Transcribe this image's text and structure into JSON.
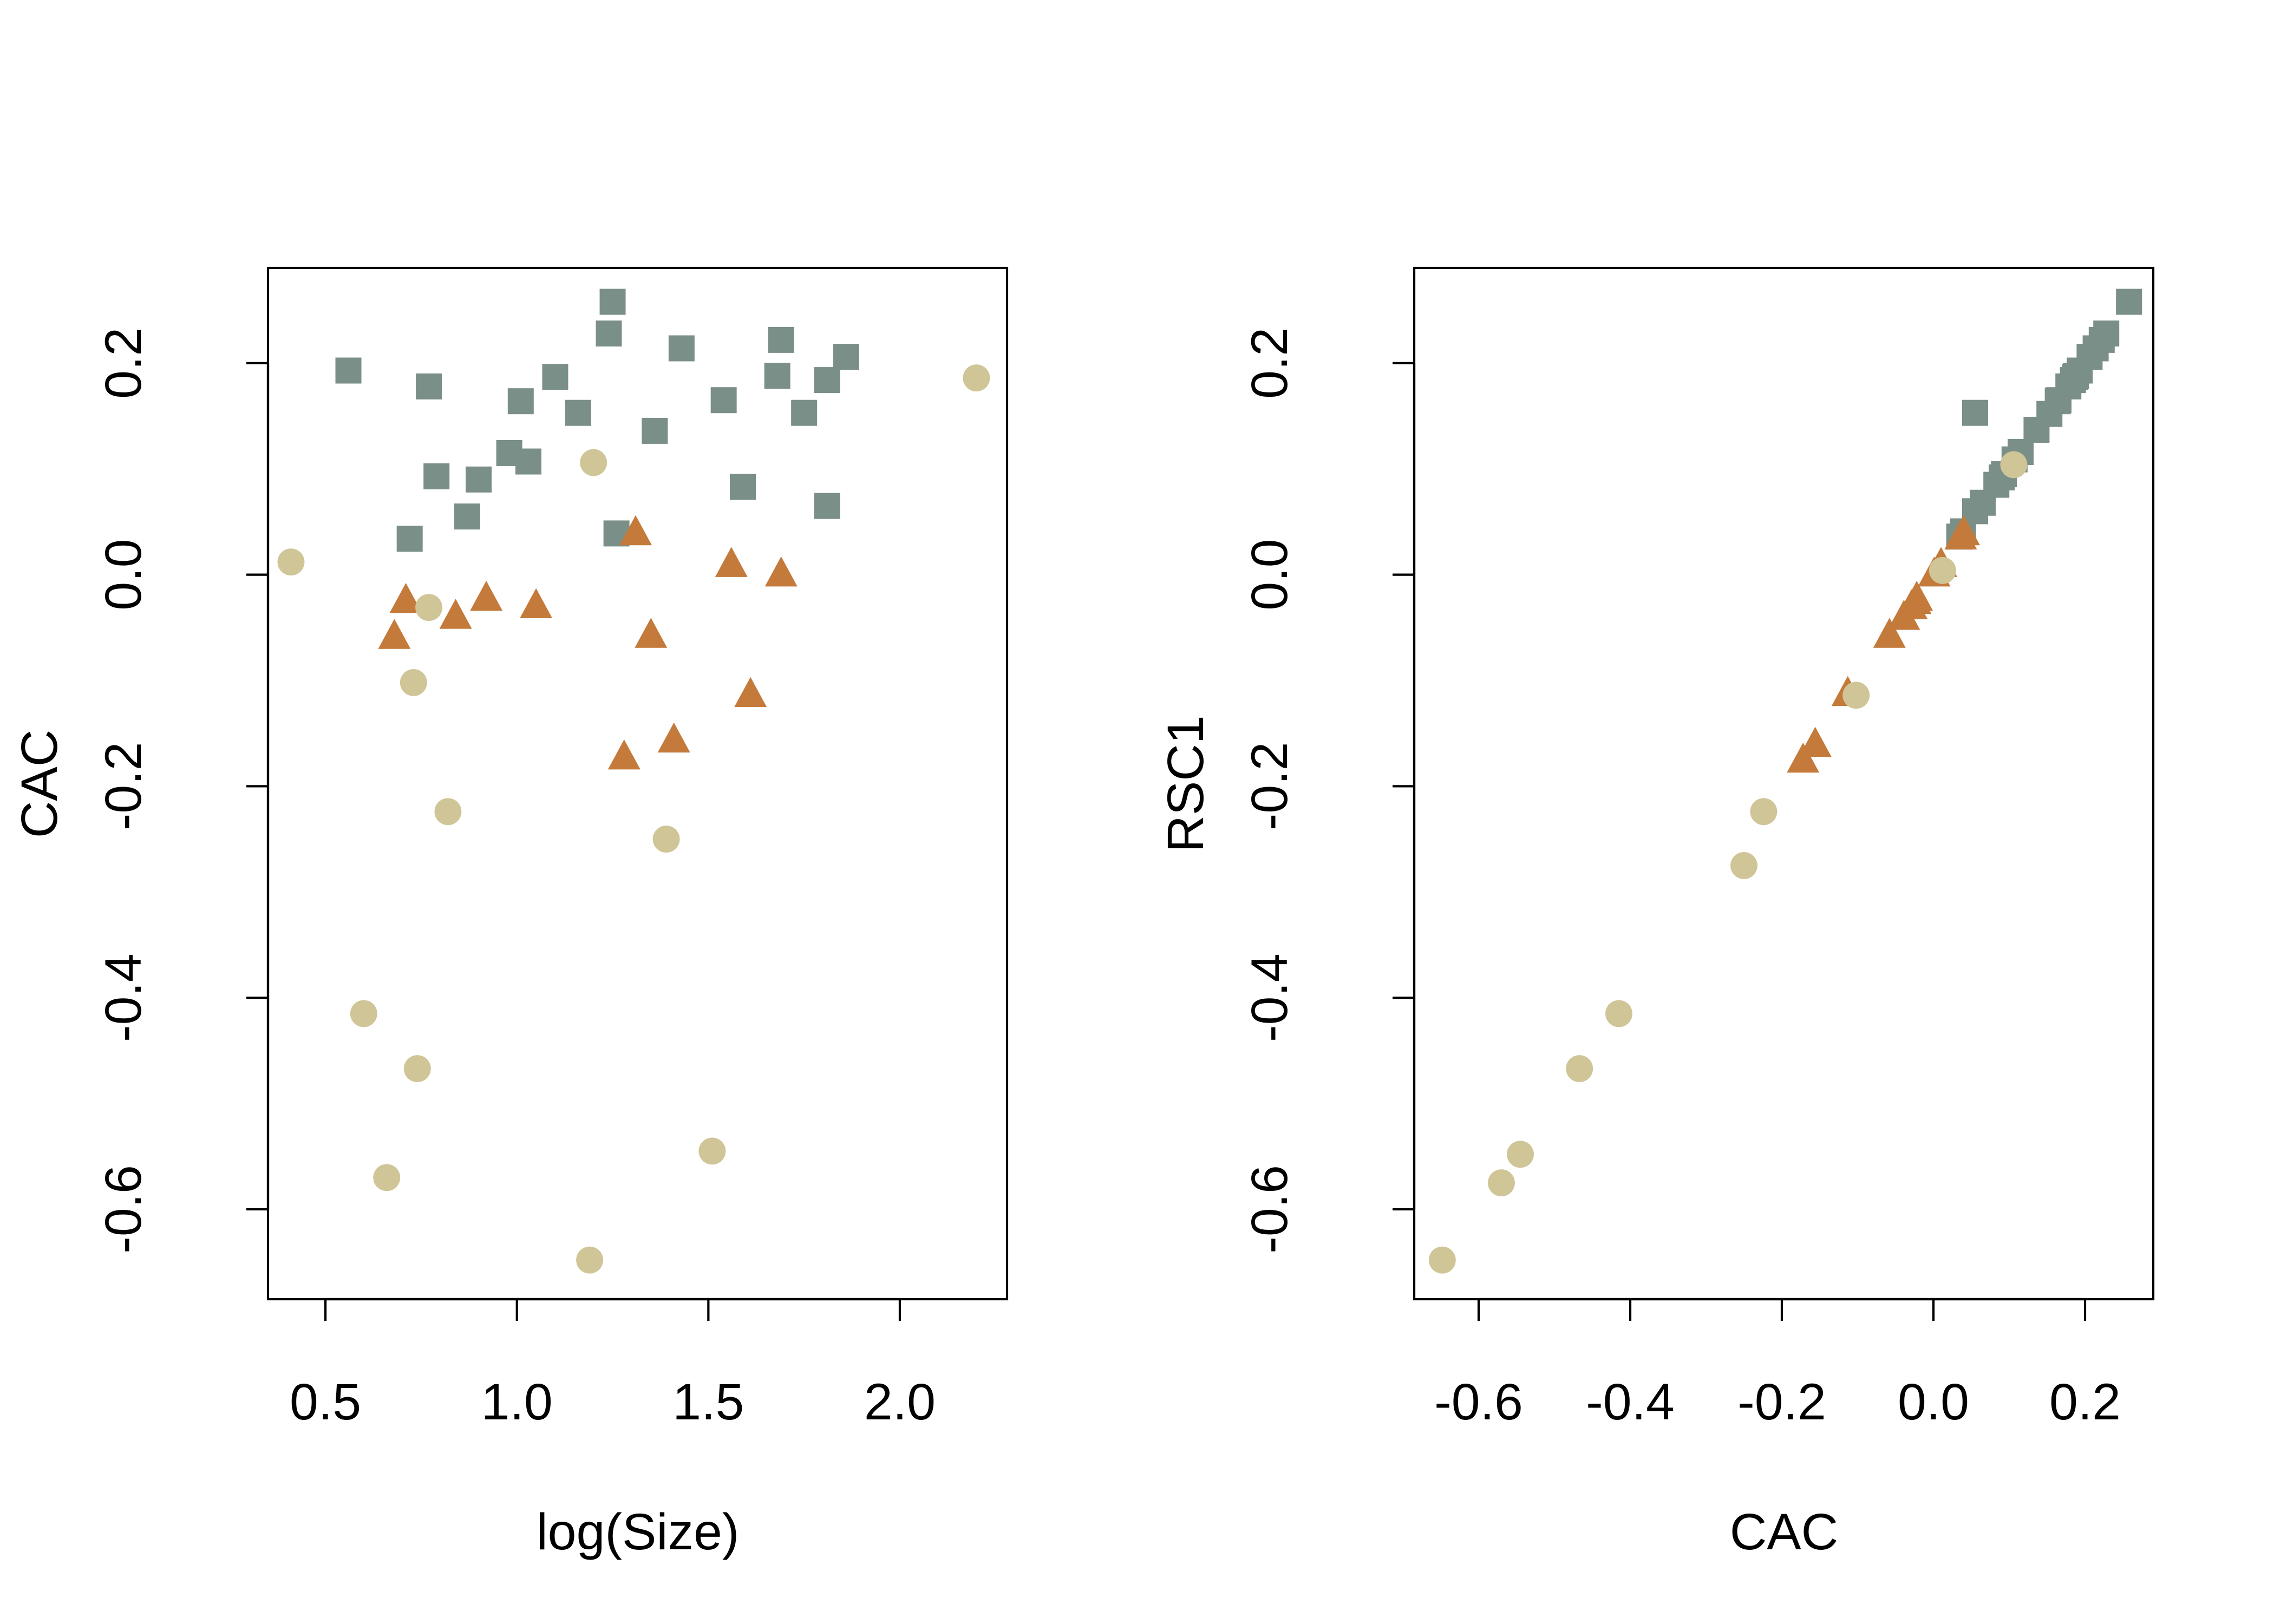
{
  "colors": {
    "group_square": "#7a8f87",
    "group_triangle": "#c47a3a",
    "group_circle": "#cfc597",
    "axis": "#000000",
    "background": "#ffffff"
  },
  "chart_data": [
    {
      "type": "scatter",
      "title": "",
      "xlabel": "log(Size)",
      "ylabel": "CAC",
      "xlim": [
        0.35,
        2.28
      ],
      "ylim": [
        -0.685,
        0.29
      ],
      "x_ticks": [
        0.5,
        1.0,
        1.5,
        2.0
      ],
      "x_tick_labels": [
        "0.5",
        "1.0",
        "1.5",
        "2.0"
      ],
      "y_ticks": [
        -0.6,
        -0.4,
        -0.2,
        0.0,
        0.2
      ],
      "y_tick_labels": [
        "-0.6",
        "-0.4",
        "-0.2",
        "0.0",
        "0.2"
      ],
      "grid": false,
      "legend": "none",
      "series": [
        {
          "marker": "square",
          "color": "#7a8f87",
          "points": [
            [
              0.56,
              0.193
            ],
            [
              0.77,
              0.178
            ],
            [
              0.79,
              0.093
            ],
            [
              0.72,
              0.034
            ],
            [
              0.87,
              0.055
            ],
            [
              0.9,
              0.09
            ],
            [
              0.98,
              0.115
            ],
            [
              1.01,
              0.164
            ],
            [
              1.03,
              0.107
            ],
            [
              1.1,
              0.187
            ],
            [
              1.16,
              0.153
            ],
            [
              1.24,
              0.228
            ],
            [
              1.25,
              0.258
            ],
            [
              1.26,
              0.039
            ],
            [
              1.36,
              0.136
            ],
            [
              1.43,
              0.214
            ],
            [
              1.54,
              0.165
            ],
            [
              1.59,
              0.083
            ],
            [
              1.68,
              0.188
            ],
            [
              1.69,
              0.222
            ],
            [
              1.75,
              0.153
            ],
            [
              1.81,
              0.184
            ],
            [
              1.81,
              0.065
            ],
            [
              1.86,
              0.206
            ]
          ]
        },
        {
          "marker": "triangle",
          "color": "#c47a3a",
          "points": [
            [
              0.68,
              -0.058
            ],
            [
              0.71,
              -0.024
            ],
            [
              0.84,
              -0.039
            ],
            [
              0.92,
              -0.022
            ],
            [
              1.05,
              -0.029
            ],
            [
              1.28,
              -0.172
            ],
            [
              1.31,
              0.04
            ],
            [
              1.35,
              -0.057
            ],
            [
              1.41,
              -0.156
            ],
            [
              1.56,
              0.01
            ],
            [
              1.61,
              -0.113
            ],
            [
              1.69,
              0.001
            ]
          ]
        },
        {
          "marker": "circle",
          "color": "#cfc597",
          "points": [
            [
              0.41,
              0.012
            ],
            [
              0.6,
              -0.415
            ],
            [
              0.66,
              -0.57
            ],
            [
              0.73,
              -0.102
            ],
            [
              0.74,
              -0.467
            ],
            [
              0.77,
              -0.031
            ],
            [
              0.82,
              -0.224
            ],
            [
              1.19,
              -0.648
            ],
            [
              1.2,
              0.106
            ],
            [
              1.39,
              -0.25
            ],
            [
              1.51,
              -0.545
            ],
            [
              2.2,
              0.186
            ]
          ]
        }
      ]
    },
    {
      "type": "scatter",
      "title": "",
      "xlabel": "CAC",
      "ylabel": "RSC1",
      "xlim": [
        -0.685,
        0.29
      ],
      "ylim": [
        -0.685,
        0.29
      ],
      "x_ticks": [
        -0.6,
        -0.4,
        -0.2,
        0.0,
        0.2
      ],
      "x_tick_labels": [
        "-0.6",
        "-0.4",
        "-0.2",
        "0.0",
        "0.2"
      ],
      "y_ticks": [
        -0.6,
        -0.4,
        -0.2,
        0.0,
        0.2
      ],
      "y_tick_labels": [
        "-0.6",
        "-0.4",
        "-0.2",
        "0.0",
        "0.2"
      ],
      "grid": false,
      "legend": "none",
      "series": [
        {
          "marker": "square",
          "color": "#7a8f87",
          "points": [
            [
              0.034,
              0.036
            ],
            [
              0.039,
              0.041
            ],
            [
              0.055,
              0.06
            ],
            [
              0.055,
              0.153
            ],
            [
              0.065,
              0.068
            ],
            [
              0.083,
              0.085
            ],
            [
              0.09,
              0.092
            ],
            [
              0.093,
              0.095
            ],
            [
              0.107,
              0.109
            ],
            [
              0.115,
              0.116
            ],
            [
              0.136,
              0.137
            ],
            [
              0.153,
              0.152
            ],
            [
              0.164,
              0.164
            ],
            [
              0.165,
              0.165
            ],
            [
              0.178,
              0.178
            ],
            [
              0.184,
              0.184
            ],
            [
              0.187,
              0.187
            ],
            [
              0.188,
              0.188
            ],
            [
              0.193,
              0.193
            ],
            [
              0.206,
              0.206
            ],
            [
              0.214,
              0.214
            ],
            [
              0.222,
              0.222
            ],
            [
              0.228,
              0.228
            ],
            [
              0.258,
              0.258
            ]
          ]
        },
        {
          "marker": "triangle",
          "color": "#c47a3a",
          "points": [
            [
              -0.172,
              -0.175
            ],
            [
              -0.156,
              -0.16
            ],
            [
              -0.113,
              -0.112
            ],
            [
              -0.058,
              -0.057
            ],
            [
              -0.039,
              -0.04
            ],
            [
              -0.029,
              -0.03
            ],
            [
              -0.024,
              -0.025
            ],
            [
              -0.022,
              -0.022
            ],
            [
              0.001,
              0.001
            ],
            [
              0.01,
              0.01
            ],
            [
              0.036,
              0.036
            ],
            [
              0.04,
              0.04
            ]
          ]
        },
        {
          "marker": "circle",
          "color": "#cfc597",
          "points": [
            [
              -0.648,
              -0.648
            ],
            [
              -0.57,
              -0.575
            ],
            [
              -0.545,
              -0.548
            ],
            [
              -0.467,
              -0.467
            ],
            [
              -0.415,
              -0.415
            ],
            [
              -0.25,
              -0.275
            ],
            [
              -0.224,
              -0.224
            ],
            [
              -0.102,
              -0.114
            ],
            [
              0.012,
              0.004
            ],
            [
              0.106,
              0.104
            ]
          ]
        }
      ]
    }
  ]
}
